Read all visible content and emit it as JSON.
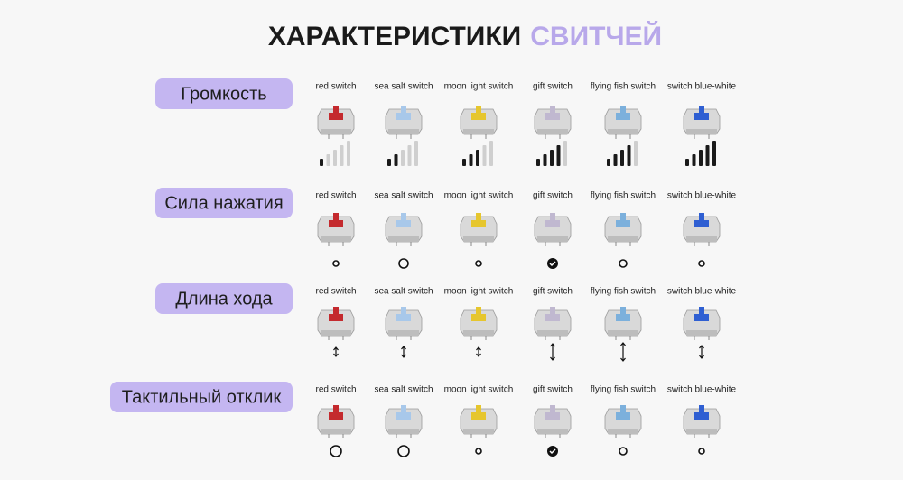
{
  "title": {
    "main": "ХАРАКТЕРИСТИКИ",
    "accent": "СВИТЧЕЙ"
  },
  "sections": [
    {
      "label": "Громкость",
      "switches": [
        "red switch",
        "sea salt switch",
        "moon light switch",
        "gift switch",
        "flying fish switch",
        "switch blue-white"
      ],
      "levels": [
        1,
        2,
        3,
        4,
        4,
        5
      ]
    },
    {
      "label": "Сила нажатия",
      "switches": [
        "red switch",
        "sea salt switch",
        "moon light switch",
        "gift switch",
        "flying fish switch",
        "switch blue-white"
      ]
    },
    {
      "label": "Длина хода",
      "switches": [
        "red switch",
        "sea salt switch",
        "moon light switch",
        "gift switch",
        "flying fish switch",
        "switch blue-white"
      ]
    },
    {
      "label": "Тактильный отклик",
      "switches": [
        "red switch",
        "sea salt switch",
        "moon light switch",
        "gift switch",
        "flying fish switch",
        "switch blue-white"
      ]
    }
  ]
}
